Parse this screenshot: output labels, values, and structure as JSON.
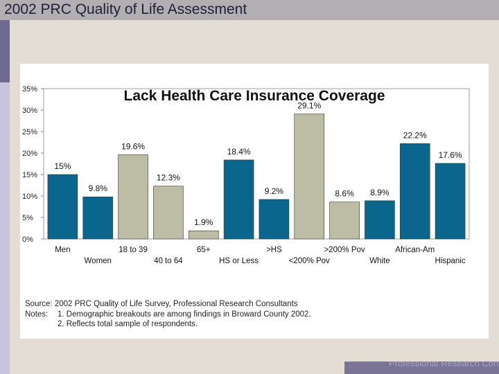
{
  "header": {
    "title": "2002 PRC Quality of Life Assessment"
  },
  "footer": {
    "logo_text": "Professional Research Consultants"
  },
  "notes": {
    "source": "Source: 2002 PRC Quality of Life Survey, Professional Research Consultants",
    "notes_label": "Notes:",
    "note1": "1. Demographic breakouts are among findings in Broward County 2002.",
    "note2": "2. Reflects total sample of respondents."
  },
  "colors": {
    "blue": "#0b668e",
    "gray": "#bdbda5",
    "header": "#b1afb2"
  },
  "chart_data": {
    "type": "bar",
    "title": "Lack Health Care Insurance Coverage",
    "xlabel": "",
    "ylabel": "",
    "ylim": [
      0,
      35
    ],
    "yticks": [
      "0%",
      "5%",
      "10%",
      "15%",
      "20%",
      "25%",
      "30%",
      "35%"
    ],
    "categories": [
      "Men",
      "Women",
      "18 to 39",
      "40 to 64",
      "65+",
      "HS or Less",
      ">HS",
      "<200% Pov",
      ">200% Pov",
      "White",
      "African-Am",
      "Hispanic"
    ],
    "values": [
      15,
      9.8,
      19.6,
      12.3,
      1.9,
      18.4,
      9.2,
      29.1,
      8.6,
      8.9,
      22.2,
      17.6
    ],
    "value_labels": [
      "15%",
      "9.8%",
      "19.6%",
      "12.3%",
      "1.9%",
      "18.4%",
      "9.2%",
      "29.1%",
      "8.6%",
      "8.9%",
      "22.2%",
      "17.6%"
    ],
    "bar_colors": [
      "blue",
      "blue",
      "gray",
      "gray",
      "gray",
      "blue",
      "blue",
      "gray",
      "gray",
      "blue",
      "blue",
      "blue"
    ]
  }
}
